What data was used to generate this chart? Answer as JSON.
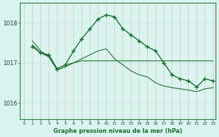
{
  "title": "Graphe pression niveau de la mer (hPa)",
  "bg_color": "#d8f5f0",
  "line_color": "#1a6b2a",
  "grid_color_v": "#f0c0c0",
  "grid_color_h": "#c8e8e0",
  "xlim": [
    0,
    23
  ],
  "ylim": [
    1015.6,
    1018.5
  ],
  "yticks": [
    1016,
    1017,
    1018
  ],
  "xticks": [
    0,
    1,
    2,
    3,
    4,
    5,
    6,
    7,
    8,
    9,
    10,
    11,
    12,
    13,
    14,
    15,
    16,
    17,
    18,
    19,
    20,
    21,
    22,
    23
  ],
  "series1_x": [
    1,
    2,
    3,
    4,
    5,
    6,
    7,
    8,
    9,
    10,
    11,
    12,
    13,
    14,
    15,
    16,
    17,
    18,
    19,
    20,
    21,
    22,
    23
  ],
  "series1_y": [
    1017.4,
    1017.25,
    1017.2,
    1016.85,
    1016.95,
    1017.3,
    1017.6,
    1017.85,
    1018.1,
    1018.2,
    1018.15,
    1017.85,
    1017.7,
    1017.55,
    1017.4,
    1017.3,
    1017.0,
    1016.7,
    1016.6,
    1016.55,
    1016.4,
    1016.6,
    1016.55
  ],
  "series2_x": [
    1,
    2,
    3,
    4,
    5,
    6,
    7,
    8,
    9,
    10,
    11,
    12,
    13,
    14,
    15,
    16,
    17,
    18,
    19,
    20,
    21,
    22,
    23
  ],
  "series2_y": [
    1017.55,
    1017.3,
    1017.15,
    1016.85,
    1016.95,
    1017.0,
    1017.05,
    1017.05,
    1017.05,
    1017.05,
    1017.05,
    1017.05,
    1017.05,
    1017.05,
    1017.05,
    1017.05,
    1017.05,
    1017.05,
    1017.05,
    1017.05,
    1017.05,
    1017.05,
    1017.05
  ],
  "series3_x": [
    1,
    2,
    3,
    4,
    5,
    6,
    7,
    8,
    9,
    10,
    11,
    12,
    13,
    14,
    15,
    16,
    17,
    18,
    19,
    20,
    21,
    22,
    23
  ],
  "series3_y": [
    1017.45,
    1017.25,
    1017.15,
    1016.82,
    1016.9,
    1017.0,
    1017.1,
    1017.2,
    1017.3,
    1017.35,
    1017.1,
    1016.95,
    1016.8,
    1016.7,
    1016.65,
    1016.5,
    1016.42,
    1016.38,
    1016.35,
    1016.32,
    1016.28,
    1016.35,
    1016.38
  ]
}
